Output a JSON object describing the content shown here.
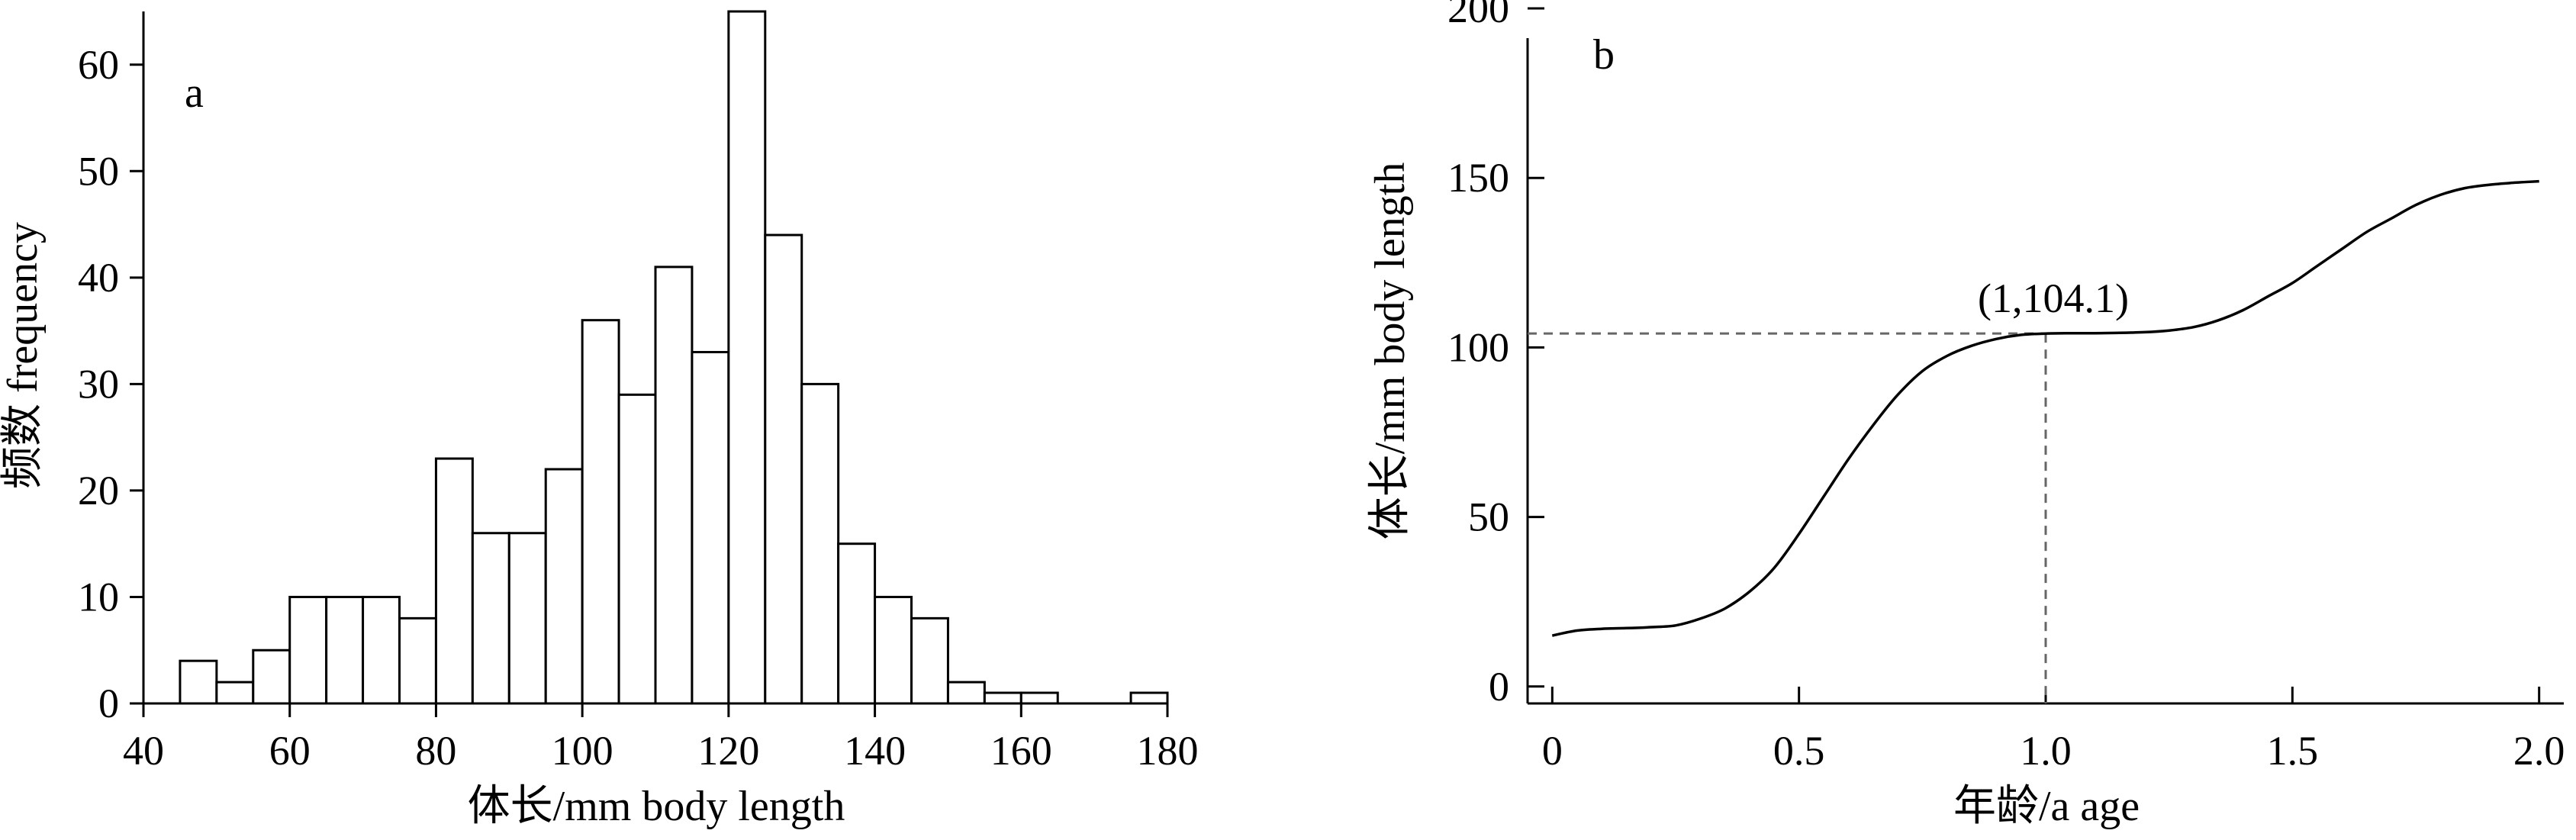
{
  "chart_data": [
    {
      "type": "bar",
      "panel_label": "a",
      "xlabel": "体长/mm body length",
      "ylabel": "频数 frequency",
      "xlim": [
        40,
        180
      ],
      "ylim": [
        0,
        65
      ],
      "xticks": [
        40,
        60,
        80,
        100,
        120,
        140,
        160,
        180
      ],
      "yticks": [
        0,
        10,
        20,
        30,
        40,
        50,
        60
      ],
      "bin_width": 5,
      "bins": [
        {
          "start": 45,
          "end": 50,
          "value": 4
        },
        {
          "start": 50,
          "end": 55,
          "value": 2
        },
        {
          "start": 55,
          "end": 60,
          "value": 5
        },
        {
          "start": 60,
          "end": 65,
          "value": 10
        },
        {
          "start": 65,
          "end": 70,
          "value": 10
        },
        {
          "start": 70,
          "end": 75,
          "value": 10
        },
        {
          "start": 75,
          "end": 80,
          "value": 8
        },
        {
          "start": 80,
          "end": 85,
          "value": 23
        },
        {
          "start": 85,
          "end": 90,
          "value": 16
        },
        {
          "start": 90,
          "end": 95,
          "value": 16
        },
        {
          "start": 95,
          "end": 100,
          "value": 22
        },
        {
          "start": 100,
          "end": 105,
          "value": 36
        },
        {
          "start": 105,
          "end": 110,
          "value": 29
        },
        {
          "start": 110,
          "end": 115,
          "value": 41
        },
        {
          "start": 115,
          "end": 120,
          "value": 33
        },
        {
          "start": 120,
          "end": 125,
          "value": 65
        },
        {
          "start": 125,
          "end": 130,
          "value": 44
        },
        {
          "start": 130,
          "end": 135,
          "value": 30
        },
        {
          "start": 135,
          "end": 140,
          "value": 15
        },
        {
          "start": 140,
          "end": 145,
          "value": 10
        },
        {
          "start": 145,
          "end": 150,
          "value": 8
        },
        {
          "start": 150,
          "end": 155,
          "value": 2
        },
        {
          "start": 155,
          "end": 160,
          "value": 1
        },
        {
          "start": 160,
          "end": 165,
          "value": 1
        },
        {
          "start": 165,
          "end": 170,
          "value": 0
        },
        {
          "start": 170,
          "end": 175,
          "value": 0
        },
        {
          "start": 175,
          "end": 180,
          "value": 1
        }
      ],
      "colors": {
        "bar_fill": "#ffffff",
        "bar_stroke": "#000000"
      }
    },
    {
      "type": "line",
      "panel_label": "b",
      "xlabel": "年龄/a age",
      "ylabel": "体长/mm body length",
      "xlim": [
        -0.05,
        2.05
      ],
      "ylim": [
        -5,
        200
      ],
      "xticks": [
        0,
        0.5,
        1.0,
        1.5,
        2.0
      ],
      "xtick_labels": [
        "0",
        "0.5",
        "1.0",
        "1.5",
        "2.0"
      ],
      "yticks": [
        0,
        50,
        100,
        150,
        200
      ],
      "series": [
        {
          "x": [
            0,
            0.05,
            0.1,
            0.15,
            0.2,
            0.25,
            0.3,
            0.35,
            0.4,
            0.45,
            0.5,
            0.55,
            0.6,
            0.65,
            0.7,
            0.75,
            0.8,
            0.85,
            0.9,
            0.95,
            1.0,
            1.05,
            1.1,
            1.15,
            1.2,
            1.25,
            1.3,
            1.35,
            1.4,
            1.45,
            1.5,
            1.55,
            1.6,
            1.65,
            1.7,
            1.75,
            1.8,
            1.85,
            1.9,
            1.95,
            2.0
          ],
          "y": [
            15,
            16.5,
            17,
            17.2,
            17.5,
            18,
            20,
            23,
            28,
            35,
            45,
            56,
            67,
            77,
            86,
            93,
            97.5,
            100.5,
            102.5,
            103.7,
            104.1,
            104.2,
            104.2,
            104.3,
            104.5,
            105,
            106,
            108,
            111,
            115,
            119,
            124,
            129,
            134,
            138,
            142,
            145,
            147,
            148,
            148.6,
            149
          ]
        }
      ],
      "annotation": {
        "text": "(1,104.1)",
        "x": 1,
        "y": 104.1
      },
      "colors": {
        "line": "#000000",
        "guide": "#666666"
      }
    }
  ]
}
